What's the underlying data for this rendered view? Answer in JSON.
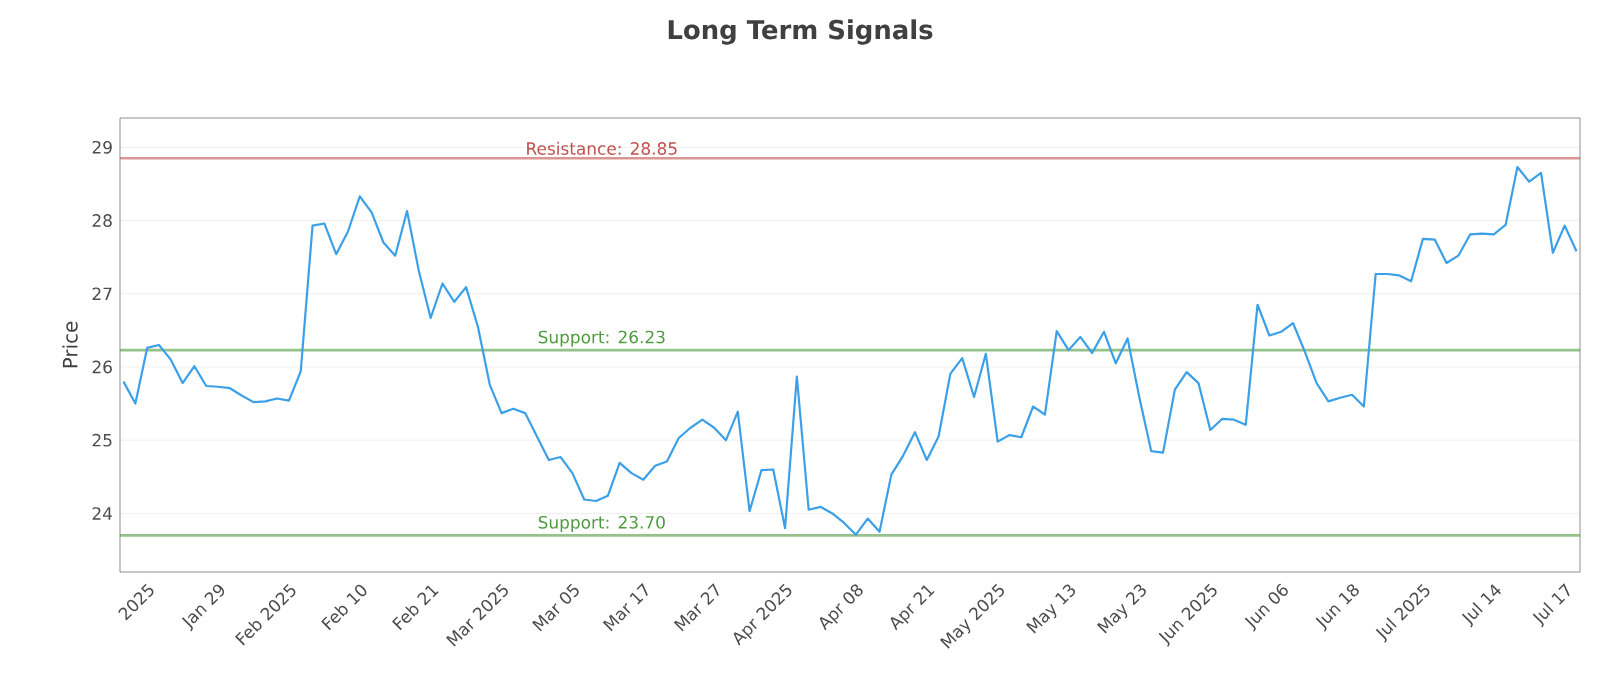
{
  "chart_data": {
    "type": "line",
    "title": "Long Term Signals",
    "ylabel": "Price",
    "categories": [
      null,
      null,
      "2025",
      null,
      null,
      null,
      null,
      null,
      "Jan 29",
      null,
      null,
      null,
      null,
      null,
      "Feb 2025",
      null,
      null,
      null,
      null,
      null,
      "Feb 10",
      null,
      null,
      null,
      null,
      null,
      "Feb 21",
      null,
      null,
      null,
      null,
      null,
      "Mar 2025",
      null,
      null,
      null,
      null,
      null,
      "Mar 05",
      null,
      null,
      null,
      null,
      null,
      "Mar 17",
      null,
      null,
      null,
      null,
      null,
      "Mar 27",
      null,
      null,
      null,
      null,
      null,
      "Apr 2025",
      null,
      null,
      null,
      null,
      null,
      "Apr 08",
      null,
      null,
      null,
      null,
      null,
      "Apr 21",
      null,
      null,
      null,
      null,
      null,
      "May 2025",
      null,
      null,
      null,
      null,
      null,
      "May 13",
      null,
      null,
      null,
      null,
      null,
      "May 23",
      null,
      null,
      null,
      null,
      null,
      "Jun 2025",
      null,
      null,
      null,
      null,
      null,
      "Jun 06",
      null,
      null,
      null,
      null,
      null,
      "Jun 18",
      null,
      null,
      null,
      null,
      null,
      "Jul 2025",
      null,
      null,
      null,
      null,
      null,
      "Jul 14",
      null,
      null,
      null,
      null,
      null,
      "Jul 17",
      null
    ],
    "series": [
      {
        "color": "#3ba0e8",
        "values": [
          25.8,
          25.5,
          26.26,
          26.3,
          26.1,
          25.78,
          26.01,
          25.74,
          25.73,
          25.71,
          25.61,
          25.52,
          25.53,
          25.57,
          25.54,
          25.94,
          27.93,
          27.96,
          27.54,
          27.85,
          28.33,
          28.11,
          27.7,
          27.52,
          28.13,
          27.31,
          26.67,
          27.14,
          26.89,
          27.09,
          26.55,
          25.76,
          25.37,
          25.43,
          25.37,
          25.05,
          24.73,
          24.77,
          24.55,
          24.19,
          24.17,
          24.24,
          24.69,
          24.55,
          24.46,
          24.65,
          24.71,
          25.03,
          25.17,
          25.28,
          25.17,
          25.0,
          25.39,
          24.03,
          24.59,
          24.6,
          23.8,
          25.87,
          24.05,
          24.09,
          24.0,
          23.87,
          23.71,
          23.93,
          23.75,
          24.53,
          24.79,
          25.11,
          24.73,
          25.05,
          25.91,
          26.12,
          25.59,
          26.18,
          24.98,
          25.07,
          25.04,
          25.46,
          25.35,
          26.49,
          26.23,
          26.41,
          26.19,
          26.48,
          26.05,
          26.39,
          25.58,
          24.85,
          24.83,
          25.69,
          25.93,
          25.78,
          25.14,
          25.29,
          25.28,
          25.21,
          26.85,
          26.43,
          26.48,
          26.6,
          26.21,
          25.78,
          25.53,
          25.58,
          25.62,
          25.46,
          27.27,
          27.27,
          27.25,
          27.17,
          27.75,
          27.74,
          27.42,
          27.52,
          27.81,
          27.82,
          27.81,
          27.94,
          28.73,
          28.53,
          28.65,
          27.56,
          27.93,
          27.58
        ]
      }
    ],
    "ylim": [
      23.2,
      29.4
    ],
    "yticks": [
      24,
      25,
      26,
      27,
      28,
      29
    ],
    "ref_lines": [
      {
        "axis": "y",
        "value": 28.85,
        "label": "Resistance: 28.85",
        "color": "#c0504d"
      },
      {
        "axis": "y",
        "value": 26.23,
        "label": "Support: 26.23",
        "color": "#4e9a3e"
      },
      {
        "axis": "y",
        "value": 23.7,
        "label": "Support: 23.70",
        "color": "#4e9a3e"
      }
    ],
    "grid": "y",
    "marker": "none"
  }
}
